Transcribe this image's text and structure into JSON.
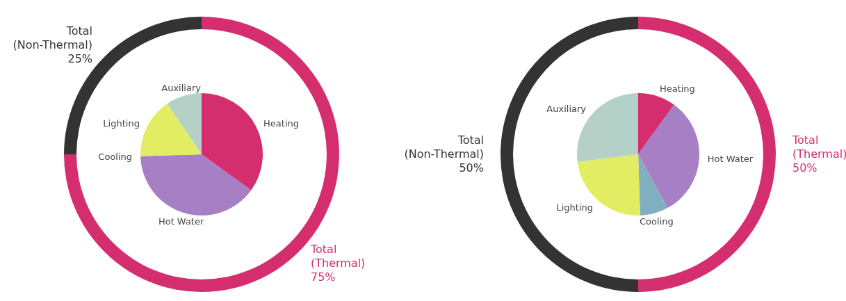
{
  "chart_data": [
    {
      "type": "donut",
      "categories": [
        "Total (Thermal)",
        "Total (Non-Thermal)"
      ],
      "values": [
        75,
        25
      ],
      "colors": [
        "#d42e6e",
        "#333333"
      ],
      "value_labels": [
        "75%",
        "25%"
      ]
    },
    {
      "type": "pie",
      "categories": [
        "Heating",
        "Hot Water",
        "Cooling",
        "Lighting",
        "Auxiliary"
      ],
      "values": [
        35,
        39.5,
        0,
        16,
        9.5
      ],
      "colors": [
        "#d42e6e",
        "#a67fc4",
        "#80b0c0",
        "#e3ed64",
        "#b5d1c7"
      ]
    },
    {
      "type": "donut",
      "categories": [
        "Total (Thermal)",
        "Total (Non-Thermal)"
      ],
      "values": [
        50,
        50
      ],
      "colors": [
        "#d42e6e",
        "#333333"
      ],
      "value_labels": [
        "50%",
        "50%"
      ]
    },
    {
      "type": "pie",
      "categories": [
        "Heating",
        "Hot Water",
        "Cooling",
        "Lighting",
        "Auxiliary"
      ],
      "values": [
        10,
        32,
        7.5,
        23.5,
        27
      ],
      "colors": [
        "#d42e6e",
        "#a67fc4",
        "#80b0c0",
        "#e3ed64",
        "#b5d1c7"
      ]
    }
  ]
}
